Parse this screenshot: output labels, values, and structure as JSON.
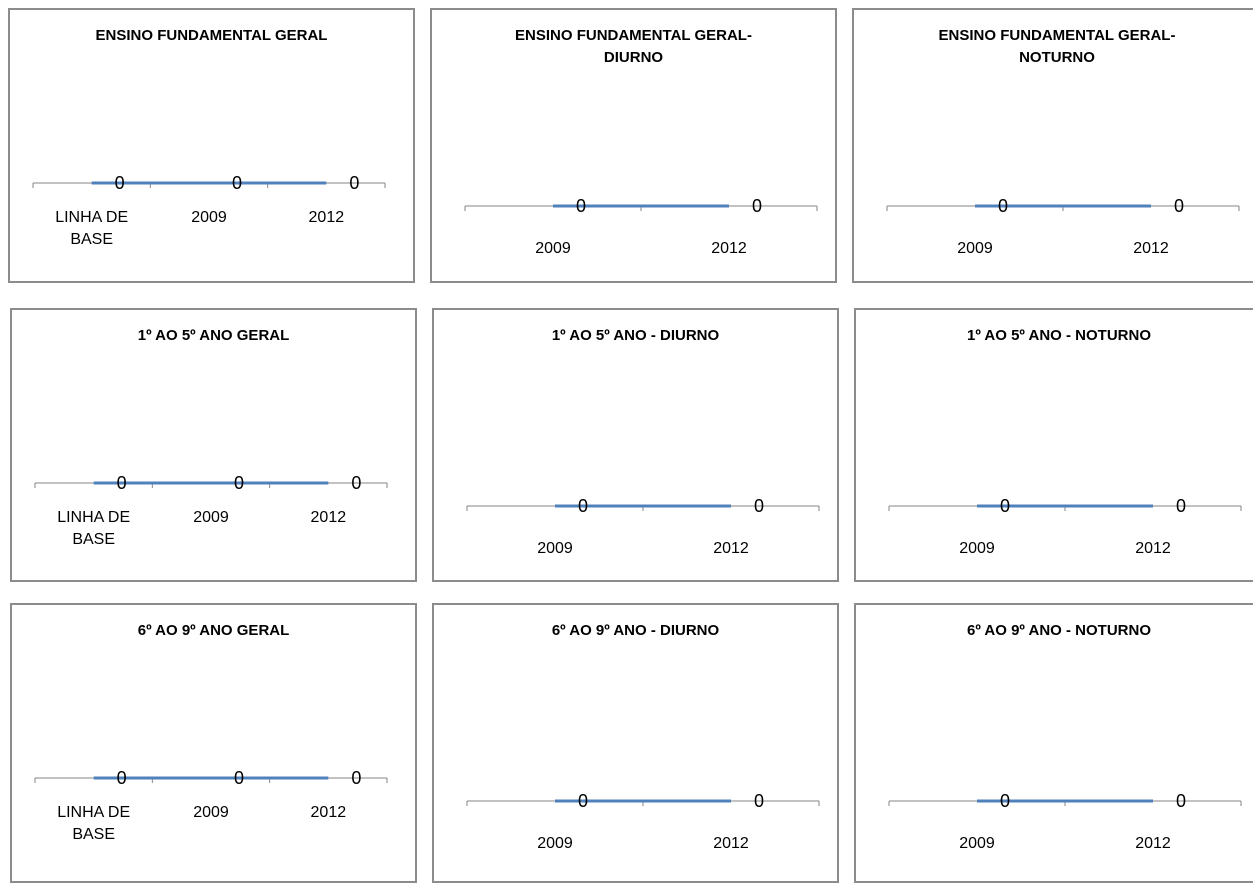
{
  "chart_data": [
    {
      "type": "line",
      "title": [
        "ENSINO FUNDAMENTAL GERAL"
      ],
      "categories": [
        [
          "LINHA DE",
          "BASE"
        ],
        [
          "2009"
        ],
        [
          "2012"
        ]
      ],
      "series": [
        {
          "values": [
            0,
            0,
            0
          ],
          "data_labels": [
            "0",
            "0",
            "0"
          ]
        }
      ],
      "line_color": "#4f81bd",
      "axis_color": "#868686"
    },
    {
      "type": "line",
      "title": [
        "ENSINO FUNDAMENTAL GERAL-",
        "DIURNO"
      ],
      "categories": [
        [
          "2009"
        ],
        [
          "2012"
        ]
      ],
      "series": [
        {
          "values": [
            0,
            0
          ],
          "data_labels": [
            "0",
            "0"
          ]
        }
      ],
      "line_color": "#4f81bd",
      "axis_color": "#868686"
    },
    {
      "type": "line",
      "title": [
        "ENSINO FUNDAMENTAL GERAL-",
        "NOTURNO"
      ],
      "categories": [
        [
          "2009"
        ],
        [
          "2012"
        ]
      ],
      "series": [
        {
          "values": [
            0,
            0
          ],
          "data_labels": [
            "0",
            "0"
          ]
        }
      ],
      "line_color": "#4f81bd",
      "axis_color": "#868686"
    },
    {
      "type": "line",
      "title": [
        "1º AO 5º ANO GERAL"
      ],
      "categories": [
        [
          "LINHA DE",
          "BASE"
        ],
        [
          "2009"
        ],
        [
          "2012"
        ]
      ],
      "series": [
        {
          "values": [
            0,
            0,
            0
          ],
          "data_labels": [
            "0",
            "0",
            "0"
          ]
        }
      ],
      "line_color": "#4f81bd",
      "axis_color": "#868686"
    },
    {
      "type": "line",
      "title": [
        "1º AO 5º ANO - DIURNO"
      ],
      "categories": [
        [
          "2009"
        ],
        [
          "2012"
        ]
      ],
      "series": [
        {
          "values": [
            0,
            0
          ],
          "data_labels": [
            "0",
            "0"
          ]
        }
      ],
      "line_color": "#4f81bd",
      "axis_color": "#868686"
    },
    {
      "type": "line",
      "title": [
        "1º AO 5º ANO - NOTURNO"
      ],
      "categories": [
        [
          "2009"
        ],
        [
          "2012"
        ]
      ],
      "series": [
        {
          "values": [
            0,
            0
          ],
          "data_labels": [
            "0",
            "0"
          ]
        }
      ],
      "line_color": "#4f81bd",
      "axis_color": "#868686"
    },
    {
      "type": "line",
      "title": [
        "6º AO 9º ANO GERAL"
      ],
      "categories": [
        [
          "LINHA DE",
          "BASE"
        ],
        [
          "2009"
        ],
        [
          "2012"
        ]
      ],
      "series": [
        {
          "values": [
            0,
            0,
            0
          ],
          "data_labels": [
            "0",
            "0",
            "0"
          ]
        }
      ],
      "line_color": "#4f81bd",
      "axis_color": "#868686"
    },
    {
      "type": "line",
      "title": [
        "6º AO 9º ANO - DIURNO"
      ],
      "categories": [
        [
          "2009"
        ],
        [
          "2012"
        ]
      ],
      "series": [
        {
          "values": [
            0,
            0
          ],
          "data_labels": [
            "0",
            "0"
          ]
        }
      ],
      "line_color": "#4f81bd",
      "axis_color": "#868686"
    },
    {
      "type": "line",
      "title": [
        "6º AO 9º ANO - NOTURNO"
      ],
      "categories": [
        [
          "2009"
        ],
        [
          "2012"
        ]
      ],
      "series": [
        {
          "values": [
            0,
            0
          ],
          "data_labels": [
            "0",
            "0"
          ]
        }
      ],
      "line_color": "#4f81bd",
      "axis_color": "#868686"
    }
  ]
}
